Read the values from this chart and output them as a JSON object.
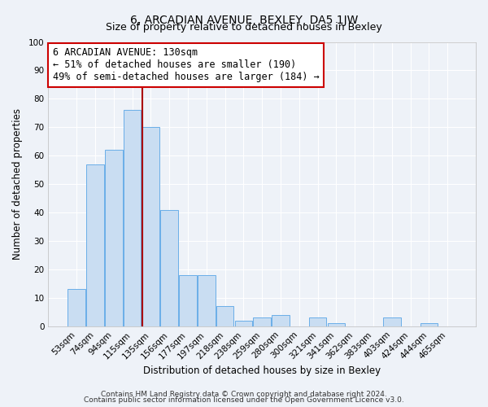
{
  "title": "6, ARCADIAN AVENUE, BEXLEY, DA5 1JW",
  "subtitle": "Size of property relative to detached houses in Bexley",
  "xlabel": "Distribution of detached houses by size in Bexley",
  "ylabel": "Number of detached properties",
  "bar_labels": [
    "53sqm",
    "74sqm",
    "94sqm",
    "115sqm",
    "135sqm",
    "156sqm",
    "177sqm",
    "197sqm",
    "218sqm",
    "238sqm",
    "259sqm",
    "280sqm",
    "300sqm",
    "321sqm",
    "341sqm",
    "362sqm",
    "383sqm",
    "403sqm",
    "424sqm",
    "444sqm",
    "465sqm"
  ],
  "bar_values": [
    13,
    57,
    62,
    76,
    70,
    41,
    18,
    18,
    7,
    2,
    3,
    4,
    0,
    3,
    1,
    0,
    0,
    3,
    0,
    1,
    0
  ],
  "bar_color": "#c9ddf2",
  "bar_edge_color": "#6aaee8",
  "vline_index": 4,
  "annotation_title": "6 ARCADIAN AVENUE: 130sqm",
  "annotation_line1": "← 51% of detached houses are smaller (190)",
  "annotation_line2": "49% of semi-detached houses are larger (184) →",
  "annotation_box_facecolor": "#ffffff",
  "annotation_box_edgecolor": "#cc0000",
  "vline_color": "#aa0000",
  "ylim": [
    0,
    100
  ],
  "yticks": [
    0,
    10,
    20,
    30,
    40,
    50,
    60,
    70,
    80,
    90,
    100
  ],
  "footnote1": "Contains HM Land Registry data © Crown copyright and database right 2024.",
  "footnote2": "Contains public sector information licensed under the Open Government Licence v3.0.",
  "bg_color": "#eef2f8",
  "grid_color": "#ffffff",
  "title_fontsize": 10,
  "subtitle_fontsize": 9,
  "axis_label_fontsize": 8.5,
  "tick_fontsize": 7.5,
  "annotation_fontsize": 8.5,
  "footnote_fontsize": 6.5
}
